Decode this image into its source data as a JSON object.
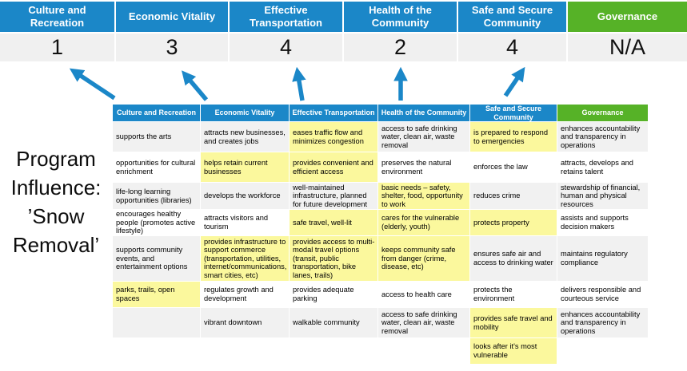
{
  "colors": {
    "blue": "#1B87C8",
    "green": "#56B227",
    "highlight": "#FBF89D",
    "band_gray": "#F0F0F0",
    "row_gray": "#F1F1F1"
  },
  "left_label": {
    "lines": [
      "Program",
      "Influence:",
      "’Snow",
      "Removal’"
    ]
  },
  "top_band": {
    "columns": [
      {
        "label": "Culture and Recreation",
        "score": "1",
        "accent": "blue"
      },
      {
        "label": "Economic Vitality",
        "score": "3",
        "accent": "blue"
      },
      {
        "label": "Effective Transportation",
        "score": "4",
        "accent": "blue"
      },
      {
        "label": "Health of the Community",
        "score": "2",
        "accent": "blue"
      },
      {
        "label": "Safe and Secure Community",
        "score": "4",
        "accent": "blue"
      },
      {
        "label": "Governance",
        "score": "N/A",
        "accent": "green"
      }
    ]
  },
  "matrix": {
    "headers": [
      {
        "label": "Culture and Recreation",
        "accent": "blue"
      },
      {
        "label": "Economic Vitality",
        "accent": "blue"
      },
      {
        "label": "Effective Transportation",
        "accent": "blue"
      },
      {
        "label": "Health of the Community",
        "accent": "blue"
      },
      {
        "label": "Safe and Secure Community",
        "accent": "green2blue"
      },
      {
        "label": "Governance",
        "accent": "green"
      }
    ],
    "rows": [
      [
        {
          "t": "supports the arts",
          "h": false
        },
        {
          "t": "attracts new businesses, and creates jobs",
          "h": false
        },
        {
          "t": "eases traffic flow and minimizes congestion",
          "h": true
        },
        {
          "t": "access to safe drinking water, clean air, waste removal",
          "h": false
        },
        {
          "t": "is prepared to respond to emergencies",
          "h": true
        },
        {
          "t": "enhances accountability and transparency in operations",
          "h": false
        }
      ],
      [
        {
          "t": "opportunities for cultural enrichment",
          "h": false
        },
        {
          "t": "helps retain current businesses",
          "h": true
        },
        {
          "t": "provides convenient and efficient access",
          "h": true
        },
        {
          "t": "preserves the natural environment",
          "h": false
        },
        {
          "t": "enforces the law",
          "h": false
        },
        {
          "t": "attracts, develops and retains talent",
          "h": false
        }
      ],
      [
        {
          "t": "life-long learning opportunities (libraries)",
          "h": false
        },
        {
          "t": "develops the workforce",
          "h": false
        },
        {
          "t": "well-maintained infrastructure, planned for future development",
          "h": false
        },
        {
          "t": "basic needs – safety, shelter, food, opportunity to work",
          "h": true
        },
        {
          "t": "reduces crime",
          "h": false
        },
        {
          "t": "stewardship of financial, human and physical resources",
          "h": false
        }
      ],
      [
        {
          "t": "encourages healthy people (promotes active lifestyle)",
          "h": false
        },
        {
          "t": "attracts visitors and tourism",
          "h": false
        },
        {
          "t": "safe travel, well-lit",
          "h": true
        },
        {
          "t": "cares for the vulnerable (elderly, youth)",
          "h": true
        },
        {
          "t": "protects property",
          "h": true
        },
        {
          "t": "assists and supports decision makers",
          "h": false
        }
      ],
      [
        {
          "t": "supports community events, and entertainment options",
          "h": false
        },
        {
          "t": "provides infrastructure to support commerce (transportation, utilities, internet/communications, smart cities, etc)",
          "h": true
        },
        {
          "t": "provides access to multi-modal travel options (transit, public transportation, bike lanes, trails)",
          "h": true
        },
        {
          "t": "keeps community safe from danger (crime, disease, etc)",
          "h": true
        },
        {
          "t": "ensures safe air and access to drinking water",
          "h": false
        },
        {
          "t": "maintains regulatory compliance",
          "h": false
        }
      ],
      [
        {
          "t": "parks, trails, open spaces",
          "h": true
        },
        {
          "t": "regulates growth and development",
          "h": false
        },
        {
          "t": "provides adequate parking",
          "h": false
        },
        {
          "t": "access to health care",
          "h": false
        },
        {
          "t": "protects the environment",
          "h": false
        },
        {
          "t": "delivers responsible and courteous service",
          "h": false
        }
      ],
      [
        {
          "t": "",
          "h": false
        },
        {
          "t": "vibrant downtown",
          "h": false
        },
        {
          "t": "walkable community",
          "h": false
        },
        {
          "t": "access to safe drinking water, clean air, waste removal",
          "h": false
        },
        {
          "t": "provides safe travel and mobility",
          "h": true
        },
        {
          "t": "enhances accountability and transparency in operations",
          "h": false
        }
      ],
      [
        {
          "t": "",
          "h": false
        },
        {
          "t": "",
          "h": false
        },
        {
          "t": "",
          "h": false
        },
        {
          "t": "",
          "h": false
        },
        {
          "t": "looks after it's most vulnerable",
          "h": true
        },
        {
          "t": "",
          "h": false
        }
      ]
    ]
  }
}
